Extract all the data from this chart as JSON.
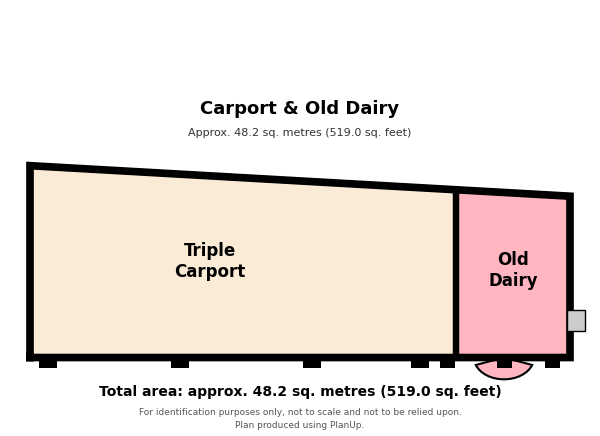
{
  "title": "Carport & Old Dairy",
  "subtitle": "Approx. 48.2 sq. metres (519.0 sq. feet)",
  "footer_main": "Total area: approx. 48.2 sq. metres (519.0 sq. feet)",
  "footer_sub1": "For identification purposes only, not to scale and not to be relied upon.",
  "footer_sub2": "Plan produced using PlanUp.",
  "bg_color": "#ffffff",
  "carport_color": "#faebd7",
  "dairy_color": "#ffb6c1",
  "outline_color": "#000000",
  "lw": 4.5,
  "carport_label": "Triple\nCarport",
  "dairy_label": "Old\nDairy"
}
